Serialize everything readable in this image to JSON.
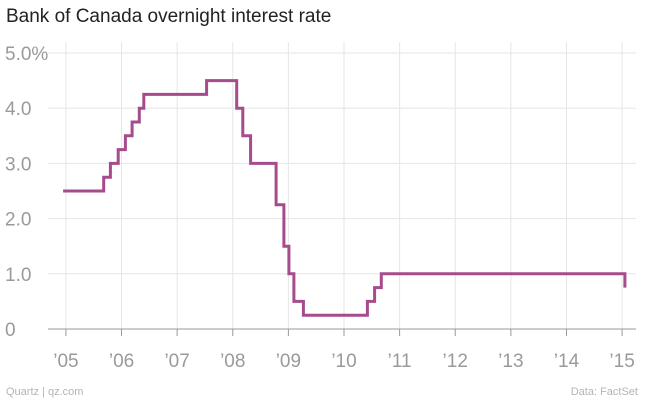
{
  "title": "Bank of Canada overnight interest rate",
  "footer": {
    "source_left": "Quartz | qz.com",
    "source_right": "Data: FactSet"
  },
  "colors": {
    "line": "#a64b8c",
    "grid": "#e6e6e6",
    "axis": "#999999",
    "text": "#9a9a9a"
  },
  "chart_data": {
    "type": "line",
    "title": "Bank of Canada overnight interest rate",
    "xlabel": "",
    "ylabel": "",
    "xlim": [
      2004.75,
      2015.25
    ],
    "ylim": [
      0,
      5.0
    ],
    "grid": true,
    "x_ticks": [
      {
        "value": 2005,
        "label": "’05"
      },
      {
        "value": 2006,
        "label": "’06"
      },
      {
        "value": 2007,
        "label": "’07"
      },
      {
        "value": 2008,
        "label": "’08"
      },
      {
        "value": 2009,
        "label": "’09"
      },
      {
        "value": 2010,
        "label": "’10"
      },
      {
        "value": 2011,
        "label": "’11"
      },
      {
        "value": 2012,
        "label": "’12"
      },
      {
        "value": 2013,
        "label": "’13"
      },
      {
        "value": 2014,
        "label": "’14"
      },
      {
        "value": 2015,
        "label": "’15"
      }
    ],
    "y_ticks": [
      {
        "value": 0,
        "label": "0"
      },
      {
        "value": 1.0,
        "label": "1.0"
      },
      {
        "value": 2.0,
        "label": "2.0"
      },
      {
        "value": 3.0,
        "label": "3.0"
      },
      {
        "value": 4.0,
        "label": "4.0"
      },
      {
        "value": 5.0,
        "label": "5.0%"
      }
    ],
    "series": [
      {
        "values": [
          {
            "x": 2004.95,
            "y": 2.5
          },
          {
            "x": 2005.68,
            "y": 2.75
          },
          {
            "x": 2005.8,
            "y": 3.0
          },
          {
            "x": 2005.94,
            "y": 3.25
          },
          {
            "x": 2006.07,
            "y": 3.5
          },
          {
            "x": 2006.19,
            "y": 3.75
          },
          {
            "x": 2006.32,
            "y": 4.0
          },
          {
            "x": 2006.4,
            "y": 4.25
          },
          {
            "x": 2007.53,
            "y": 4.5
          },
          {
            "x": 2008.07,
            "y": 4.0
          },
          {
            "x": 2008.18,
            "y": 3.5
          },
          {
            "x": 2008.32,
            "y": 3.0
          },
          {
            "x": 2008.78,
            "y": 2.25
          },
          {
            "x": 2008.92,
            "y": 1.5
          },
          {
            "x": 2009.01,
            "y": 1.0
          },
          {
            "x": 2009.1,
            "y": 0.5
          },
          {
            "x": 2009.27,
            "y": 0.25
          },
          {
            "x": 2010.42,
            "y": 0.5
          },
          {
            "x": 2010.55,
            "y": 0.75
          },
          {
            "x": 2010.67,
            "y": 1.0
          },
          {
            "x": 2015.05,
            "y": 0.75
          }
        ]
      }
    ]
  }
}
